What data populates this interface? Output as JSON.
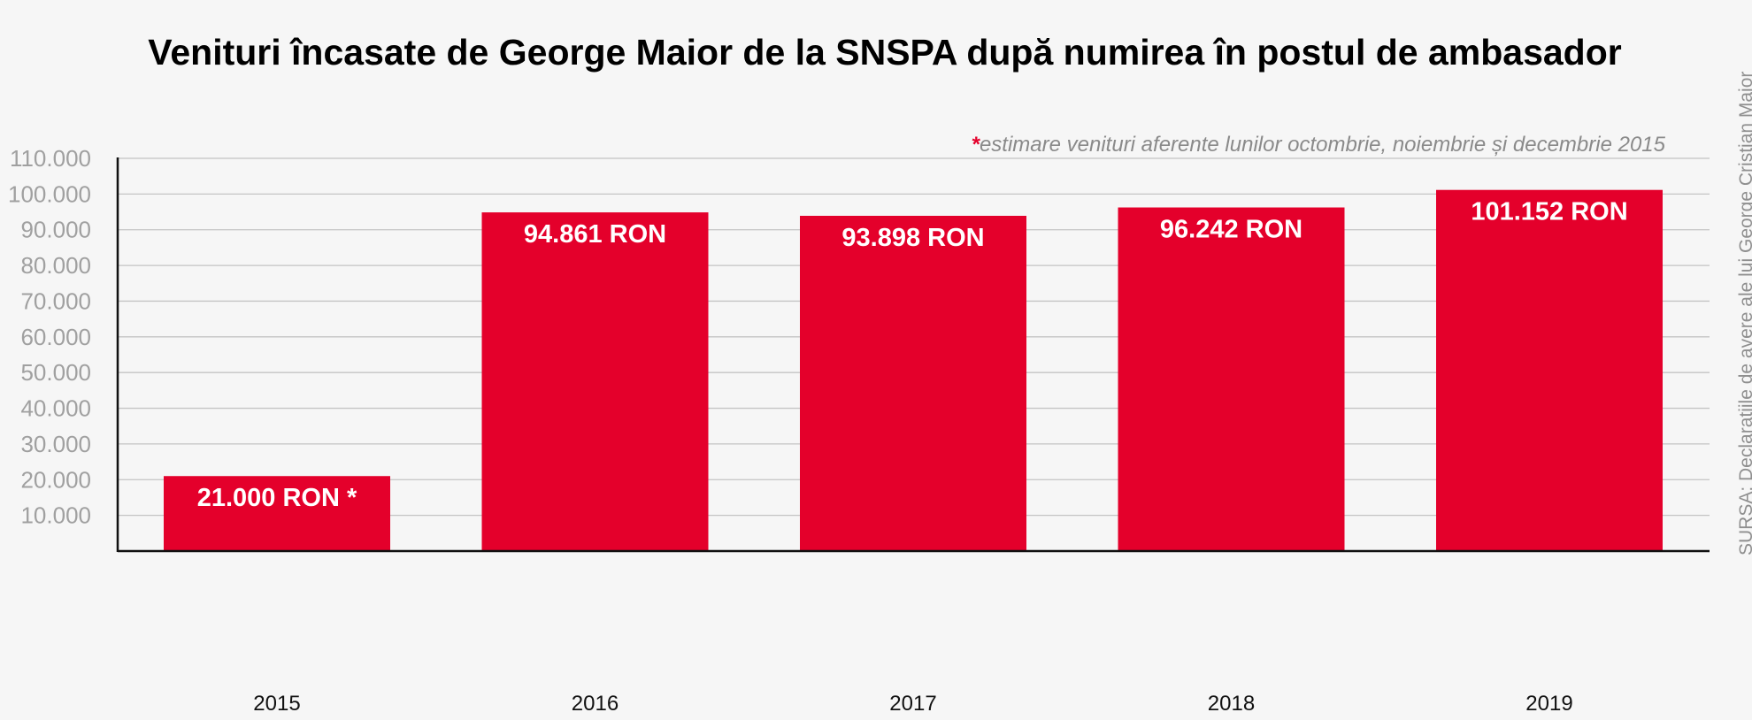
{
  "chart_data": {
    "type": "bar",
    "title": "Venituri încasate de George Maior de la SNSPA după numirea în postul de ambasador",
    "note_marker": "*",
    "note": "estimare venituri aferente lunilor octombrie, noiembrie și decembrie 2015",
    "source": "SURSA: Declarațiile de avere ale lui George Cristian Maior",
    "categories": [
      "2015",
      "2016",
      "2017",
      "2018",
      "2019"
    ],
    "values": [
      21000,
      94861,
      93898,
      96242,
      101152
    ],
    "data_labels": [
      "21.000 RON *",
      "94.861 RON",
      "93.898 RON",
      "96.242 RON",
      "101.152 RON"
    ],
    "yticks": [
      10000,
      20000,
      30000,
      40000,
      50000,
      60000,
      70000,
      80000,
      90000,
      100000,
      110000
    ],
    "ytick_labels": [
      "10.000",
      "20.000",
      "30.000",
      "40.000",
      "50.000",
      "60.000",
      "70.000",
      "80.000",
      "90.000",
      "100.000",
      "110.000"
    ],
    "ylim": [
      0,
      110000
    ],
    "xlabel": "",
    "ylabel": "",
    "grid": true,
    "bar_color": "#e4002b"
  }
}
